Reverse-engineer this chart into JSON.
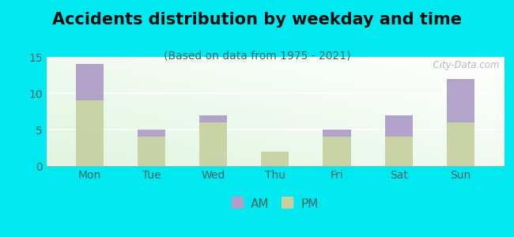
{
  "title": "Accidents distribution by weekday and time",
  "subtitle": "(Based on data from 1975 - 2021)",
  "categories": [
    "Mon",
    "Tue",
    "Wed",
    "Thu",
    "Fri",
    "Sat",
    "Sun"
  ],
  "pm_values": [
    9,
    4,
    6,
    2,
    4,
    4,
    6
  ],
  "am_values": [
    5,
    1,
    1,
    0,
    1,
    3,
    6
  ],
  "am_color": "#b09fc8",
  "pm_color": "#c5cf9f",
  "background_outer": "#00e8f0",
  "ylim": [
    0,
    15
  ],
  "yticks": [
    0,
    5,
    10,
    15
  ],
  "bar_width": 0.45,
  "title_fontsize": 15,
  "subtitle_fontsize": 10,
  "tick_fontsize": 10,
  "legend_fontsize": 11,
  "watermark_text": "  City-Data.com"
}
